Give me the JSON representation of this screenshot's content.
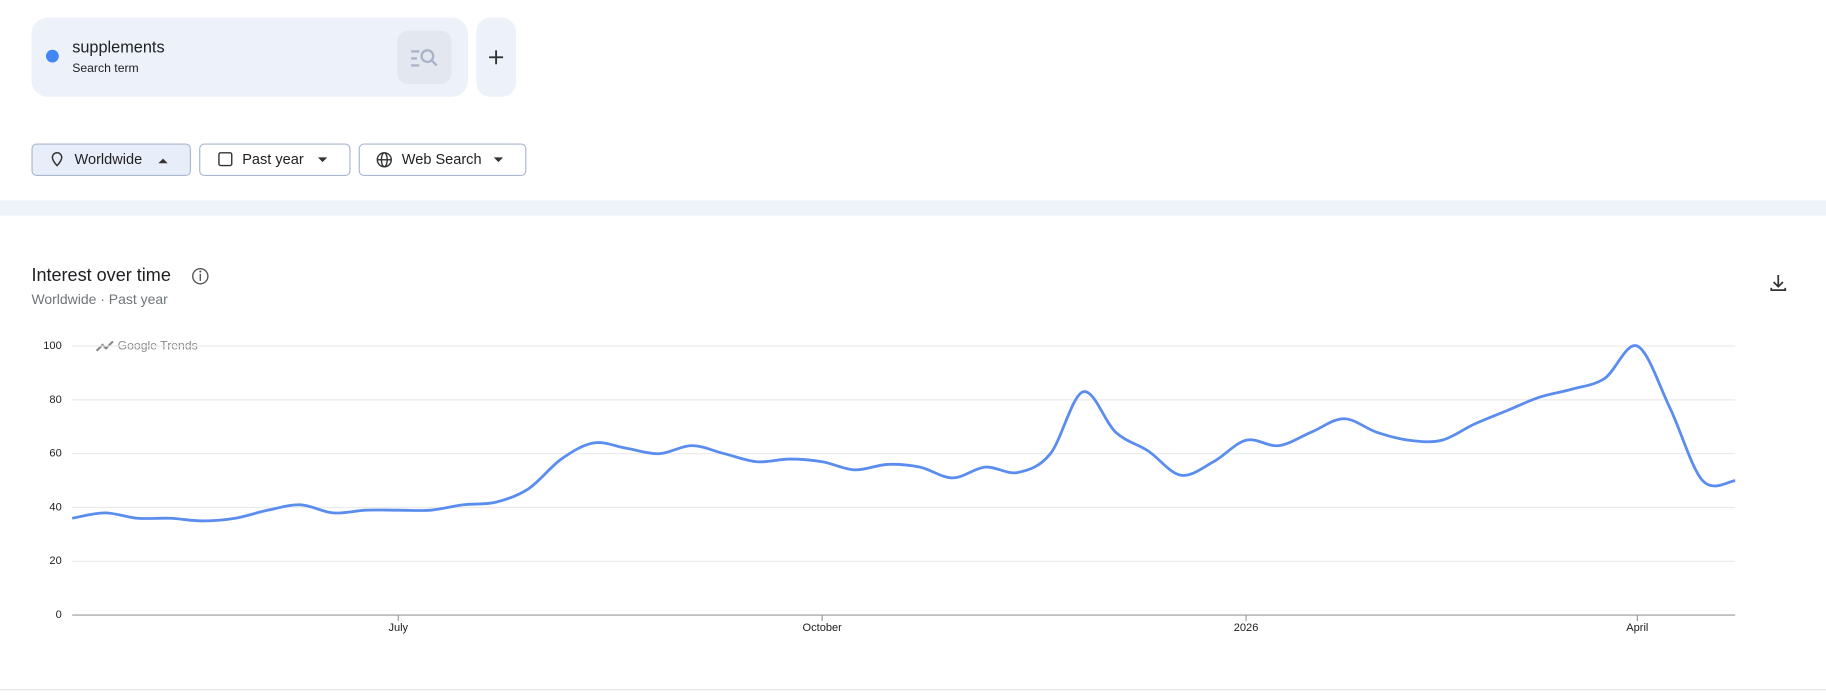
{
  "search_term": {
    "name": "supplements",
    "kind": "Search term"
  },
  "filters": [
    "Worldwide",
    "Past year",
    "Web Search"
  ],
  "chart_data": {
    "type": "line",
    "title": "Interest over time",
    "subtitle": "Worldwide · Past year",
    "watermark": "Google Trends",
    "categories": [
      null,
      null,
      null,
      null,
      null,
      null,
      null,
      null,
      null,
      null,
      "July",
      null,
      null,
      null,
      null,
      null,
      null,
      null,
      null,
      null,
      null,
      null,
      null,
      "October",
      null,
      null,
      null,
      null,
      null,
      null,
      null,
      null,
      null,
      null,
      null,
      null,
      "2026",
      null,
      null,
      null,
      null,
      null,
      null,
      null,
      null,
      null,
      null,
      null,
      "April",
      null,
      null,
      null
    ],
    "series": [
      {
        "name": "supplements",
        "color": "#5b8def",
        "values": [
          36,
          38,
          36,
          36,
          35,
          36,
          39,
          41,
          38,
          39,
          39,
          39,
          41,
          42,
          47,
          58,
          64,
          62,
          60,
          63,
          60,
          57,
          58,
          57,
          54,
          56,
          55,
          51,
          55,
          53,
          60,
          83,
          68,
          61,
          52,
          57,
          65,
          63,
          68,
          73,
          68,
          65,
          65,
          71,
          76,
          81,
          84,
          88,
          100,
          77,
          50,
          50
        ]
      }
    ],
    "ylim": [
      0,
      100
    ],
    "yticks": [
      0,
      20,
      40,
      60,
      80,
      100
    ],
    "grid": true
  }
}
